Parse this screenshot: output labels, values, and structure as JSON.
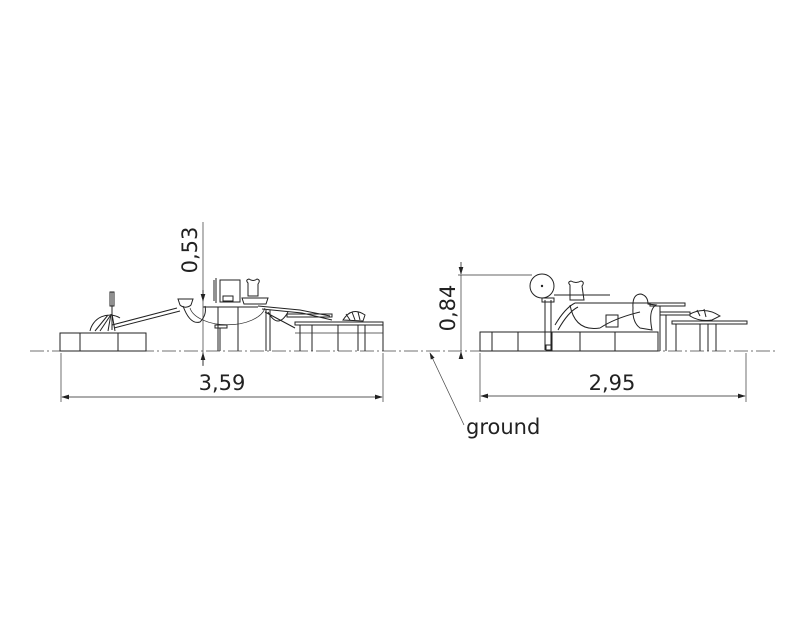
{
  "drawing": {
    "left_view": {
      "width_dimension": "3,59",
      "height_dimension": "0,53"
    },
    "right_view": {
      "width_dimension": "2,95",
      "height_dimension": "0,84"
    },
    "ground_label": "ground",
    "line_color": "#222222"
  }
}
